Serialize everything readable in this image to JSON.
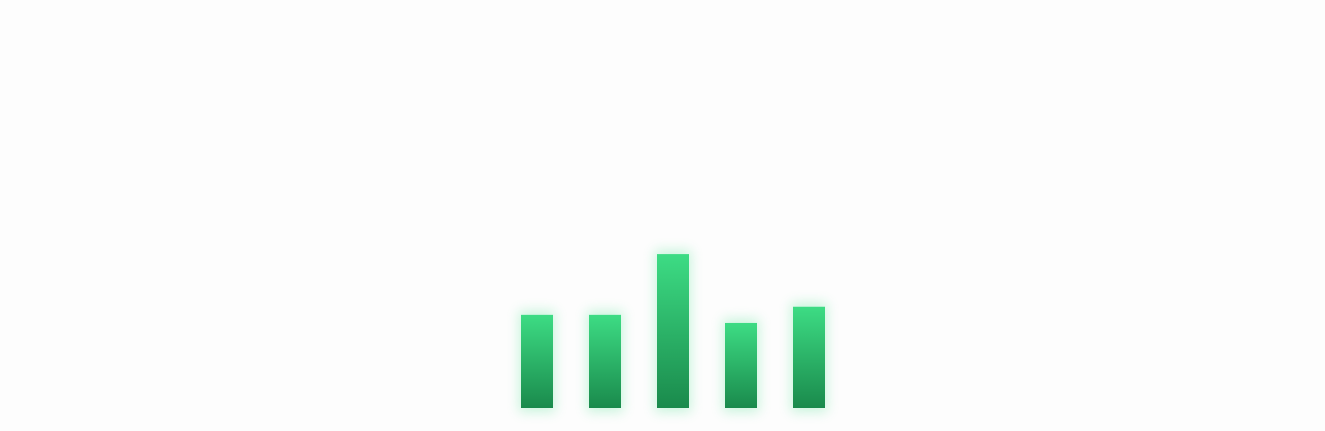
{
  "chart_data": {
    "type": "bar",
    "title": "",
    "xlabel": "",
    "ylabel": "",
    "categories": [
      "",
      "",
      "",
      "",
      ""
    ],
    "values": [
      92,
      92,
      152,
      84,
      100
    ],
    "ylim": [
      0,
      160
    ],
    "grid": false,
    "legend": "none",
    "colors": {
      "bar_top": "#3ddc84",
      "bar_bottom": "#1a8a4c",
      "glow": "#3ddc84",
      "background": "#fdfdfd"
    }
  }
}
